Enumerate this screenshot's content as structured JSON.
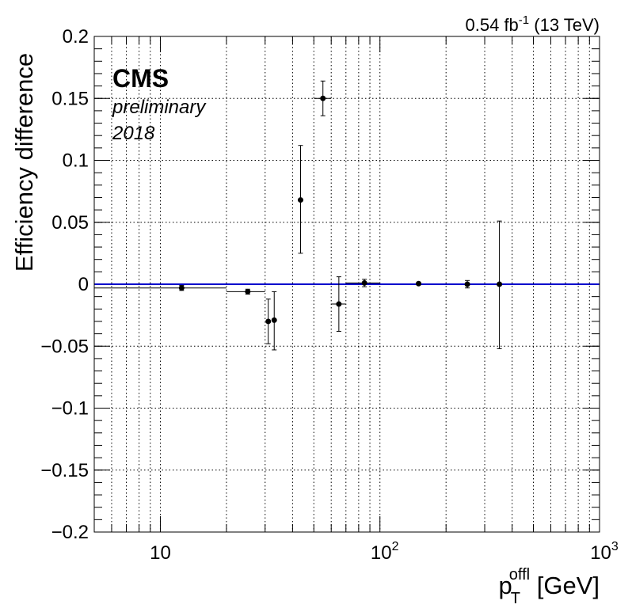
{
  "chart_data": {
    "type": "scatter",
    "xlabel": {
      "main": "p",
      "sub": "T",
      "sup": "offl",
      "unit": " [GeV]"
    },
    "ylabel": "Efficiency difference",
    "x_scale": "log",
    "xlim": [
      5,
      1000
    ],
    "ylim": [
      -0.2,
      0.2
    ],
    "grid": true,
    "y_tick_labels": [
      "0.2",
      "0.15",
      "0.1",
      "0.05",
      "0",
      "−0.05",
      "−0.1",
      "−0.15",
      "−0.2"
    ],
    "y_tick_values": [
      0.2,
      0.15,
      0.1,
      0.05,
      0,
      -0.05,
      -0.1,
      -0.15,
      -0.2
    ],
    "x_tick_labels": [
      {
        "value": 10,
        "base": "10",
        "exp": ""
      },
      {
        "value": 100,
        "base": "10",
        "exp": "2"
      },
      {
        "value": 1000,
        "base": "10",
        "exp": "3"
      }
    ],
    "reference_line": {
      "y": 0,
      "color": "#0000cc"
    },
    "points": [
      {
        "x": 12.5,
        "xlo": 5,
        "xhi": 20,
        "y": -0.003,
        "ylo": -0.005,
        "yhi": -0.001
      },
      {
        "x": 25,
        "xlo": 20,
        "xhi": 30,
        "y": -0.006,
        "ylo": -0.008,
        "yhi": -0.004
      },
      {
        "x": 31,
        "xlo": 30.2,
        "xhi": 31.8,
        "y": -0.03,
        "ylo": -0.048,
        "yhi": -0.012
      },
      {
        "x": 33,
        "xlo": 32.2,
        "xhi": 33.8,
        "y": -0.029,
        "ylo": -0.053,
        "yhi": -0.006
      },
      {
        "x": 43.5,
        "xlo": 42.5,
        "xhi": 44.5,
        "y": 0.068,
        "ylo": 0.025,
        "yhi": 0.112
      },
      {
        "x": 55,
        "xlo": 50,
        "xhi": 60,
        "y": 0.15,
        "ylo": 0.136,
        "yhi": 0.164
      },
      {
        "x": 65,
        "xlo": 60,
        "xhi": 70,
        "y": -0.016,
        "ylo": -0.038,
        "yhi": 0.006
      },
      {
        "x": 85,
        "xlo": 70,
        "xhi": 100,
        "y": 0.001,
        "ylo": -0.002,
        "yhi": 0.004
      },
      {
        "x": 150,
        "xlo": 148,
        "xhi": 152,
        "y": 0.0005,
        "ylo": -0.0005,
        "yhi": 0.0015
      },
      {
        "x": 250,
        "xlo": 246,
        "xhi": 254,
        "y": 0.0,
        "ylo": -0.003,
        "yhi": 0.003
      },
      {
        "x": 350,
        "xlo": 345,
        "xhi": 355,
        "y": 0.0,
        "ylo": -0.052,
        "yhi": 0.051
      }
    ],
    "colors": {
      "markers": "#000000",
      "reference": "#0000cc",
      "grid": "#000000"
    }
  },
  "labels": {
    "cms": "CMS",
    "extra1": "preliminary",
    "extra2": "2018",
    "lumi_value": "0.54 fb",
    "lumi_exp": "-1",
    "lumi_energy": " (13 TeV)"
  }
}
